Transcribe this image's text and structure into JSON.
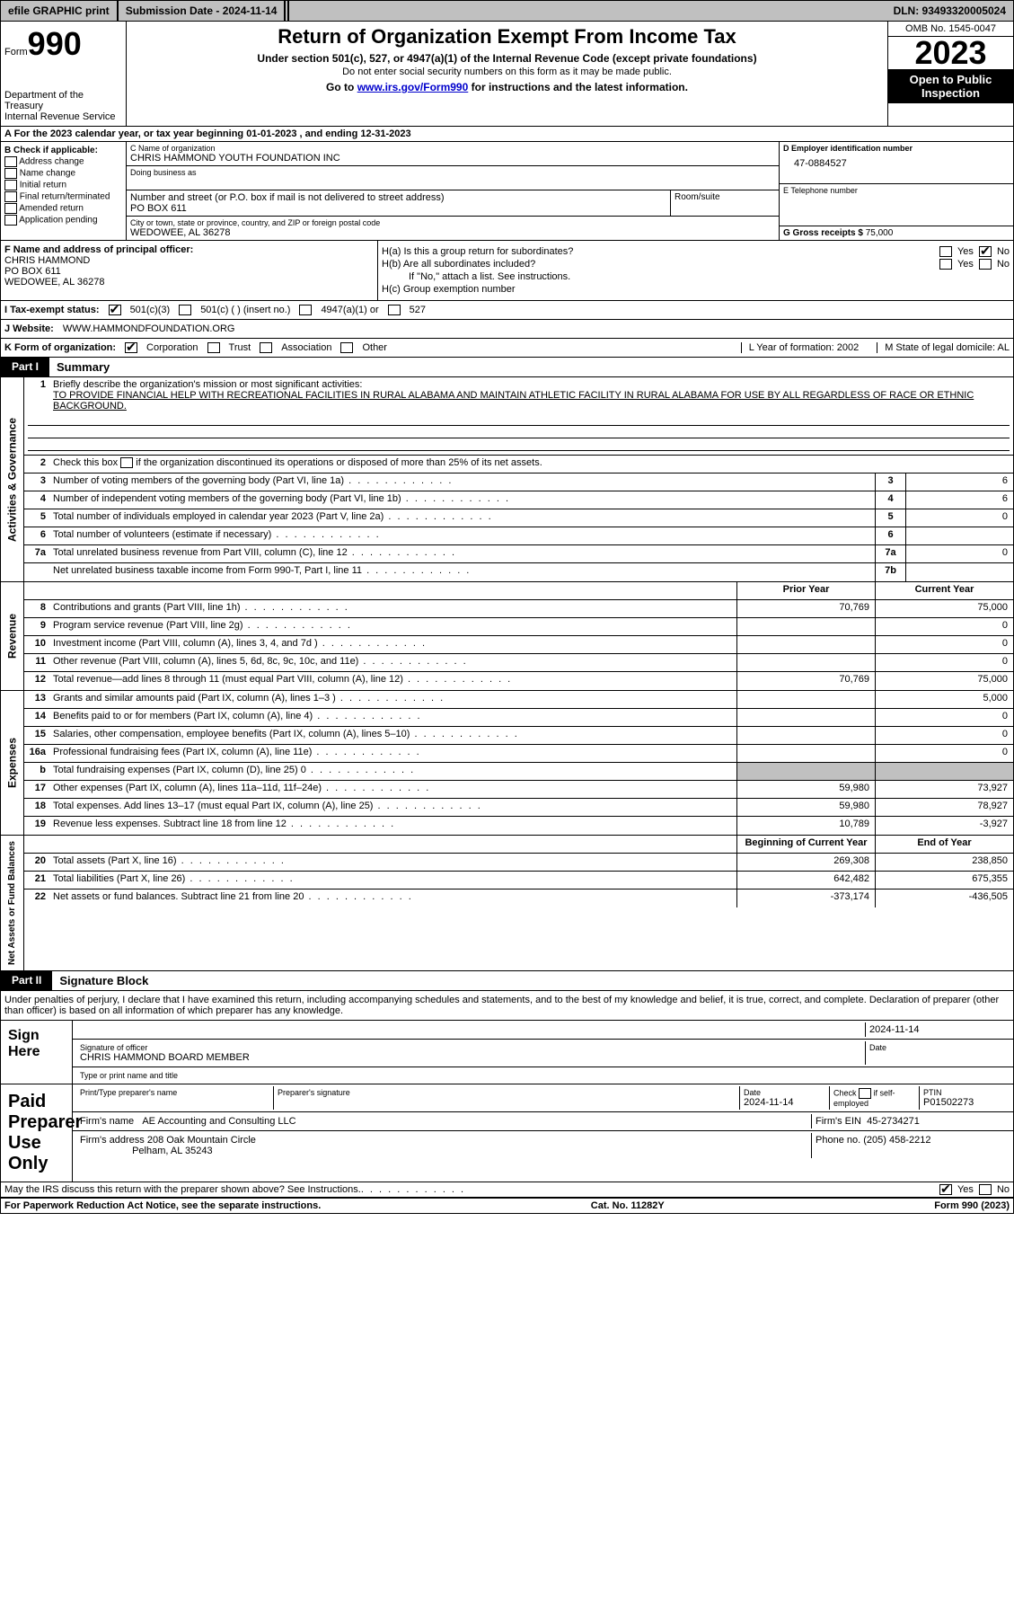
{
  "topbar": {
    "efile": "efile GRAPHIC print",
    "submission": "Submission Date - 2024-11-14",
    "dln": "DLN: 93493320005024"
  },
  "header": {
    "form_word": "Form",
    "form_num": "990",
    "dept": "Department of the Treasury",
    "irs": "Internal Revenue Service",
    "title": "Return of Organization Exempt From Income Tax",
    "sub1": "Under section 501(c), 527, or 4947(a)(1) of the Internal Revenue Code (except private foundations)",
    "sub2": "Do not enter social security numbers on this form as it may be made public.",
    "sub3_pre": "Go to ",
    "sub3_link": "www.irs.gov/Form990",
    "sub3_post": " for instructions and the latest information.",
    "omb": "OMB No. 1545-0047",
    "year": "2023",
    "open": "Open to Public Inspection"
  },
  "row_a": "A For the 2023 calendar year, or tax year beginning 01-01-2023   , and ending 12-31-2023",
  "box_b": {
    "title": "B Check if applicable:",
    "opts": [
      "Address change",
      "Name change",
      "Initial return",
      "Final return/terminated",
      "Amended return",
      "Application pending"
    ]
  },
  "box_c": {
    "name_lbl": "C Name of organization",
    "name": "CHRIS HAMMOND YOUTH FOUNDATION INC",
    "dba_lbl": "Doing business as",
    "addr_lbl": "Number and street (or P.O. box if mail is not delivered to street address)",
    "room_lbl": "Room/suite",
    "addr": "PO BOX 611",
    "city_lbl": "City or town, state or province, country, and ZIP or foreign postal code",
    "city": "WEDOWEE, AL  36278"
  },
  "box_d": {
    "lbl": "D Employer identification number",
    "val": "47-0884527"
  },
  "box_e": {
    "lbl": "E Telephone number",
    "val": ""
  },
  "box_g": {
    "lbl": "G Gross receipts $",
    "val": "75,000"
  },
  "box_f": {
    "lbl": "F  Name and address of principal officer:",
    "name": "CHRIS HAMMOND",
    "addr1": "PO BOX 611",
    "addr2": "WEDOWEE, AL  36278"
  },
  "box_h": {
    "ha": "H(a)  Is this a group return for subordinates?",
    "hb": "H(b)  Are all subordinates included?",
    "hb_note": "If \"No,\" attach a list. See instructions.",
    "hc": "H(c)  Group exemption number",
    "yes": "Yes",
    "no": "No"
  },
  "row_i": {
    "lbl": "I   Tax-exempt status:",
    "o1": "501(c)(3)",
    "o2": "501(c) (  ) (insert no.)",
    "o3": "4947(a)(1) or",
    "o4": "527"
  },
  "row_j": {
    "lbl": "J   Website:",
    "val": "WWW.HAMMONDFOUNDATION.ORG"
  },
  "row_k": {
    "lbl": "K Form of organization:",
    "o1": "Corporation",
    "o2": "Trust",
    "o3": "Association",
    "o4": "Other",
    "l": "L Year of formation: 2002",
    "m": "M State of legal domicile: AL"
  },
  "parts": {
    "p1": "Part I",
    "p1t": "Summary",
    "p2": "Part II",
    "p2t": "Signature Block"
  },
  "vtabs": {
    "ag": "Activities & Governance",
    "rev": "Revenue",
    "exp": "Expenses",
    "na": "Net Assets or Fund Balances"
  },
  "summary": {
    "l1_lbl": "Briefly describe the organization's mission or most significant activities:",
    "l1_val": "TO PROVIDE FINANCIAL HELP WITH RECREATIONAL FACILITIES IN RURAL ALABAMA AND MAINTAIN ATHLETIC FACILITY IN RURAL ALABAMA FOR USE BY ALL REGARDLESS OF RACE OR ETHNIC BACKGROUND.",
    "l2": "Check this box       if the organization discontinued its operations or disposed of more than 25% of its net assets.",
    "rows_ag": [
      {
        "n": "3",
        "t": "Number of voting members of the governing body (Part VI, line 1a)",
        "bn": "3",
        "bv": "6"
      },
      {
        "n": "4",
        "t": "Number of independent voting members of the governing body (Part VI, line 1b)",
        "bn": "4",
        "bv": "6"
      },
      {
        "n": "5",
        "t": "Total number of individuals employed in calendar year 2023 (Part V, line 2a)",
        "bn": "5",
        "bv": "0"
      },
      {
        "n": "6",
        "t": "Total number of volunteers (estimate if necessary)",
        "bn": "6",
        "bv": ""
      },
      {
        "n": "7a",
        "t": "Total unrelated business revenue from Part VIII, column (C), line 12",
        "bn": "7a",
        "bv": "0"
      },
      {
        "n": "",
        "t": "Net unrelated business taxable income from Form 990-T, Part I, line 11",
        "bn": "7b",
        "bv": ""
      }
    ],
    "col_prior": "Prior Year",
    "col_curr": "Current Year",
    "col_begin": "Beginning of Current Year",
    "col_end": "End of Year",
    "rows_rev": [
      {
        "n": "8",
        "t": "Contributions and grants (Part VIII, line 1h)",
        "p": "70,769",
        "c": "75,000"
      },
      {
        "n": "9",
        "t": "Program service revenue (Part VIII, line 2g)",
        "p": "",
        "c": "0"
      },
      {
        "n": "10",
        "t": "Investment income (Part VIII, column (A), lines 3, 4, and 7d )",
        "p": "",
        "c": "0"
      },
      {
        "n": "11",
        "t": "Other revenue (Part VIII, column (A), lines 5, 6d, 8c, 9c, 10c, and 11e)",
        "p": "",
        "c": "0"
      },
      {
        "n": "12",
        "t": "Total revenue—add lines 8 through 11 (must equal Part VIII, column (A), line 12)",
        "p": "70,769",
        "c": "75,000"
      }
    ],
    "rows_exp": [
      {
        "n": "13",
        "t": "Grants and similar amounts paid (Part IX, column (A), lines 1–3 )",
        "p": "",
        "c": "5,000"
      },
      {
        "n": "14",
        "t": "Benefits paid to or for members (Part IX, column (A), line 4)",
        "p": "",
        "c": "0"
      },
      {
        "n": "15",
        "t": "Salaries, other compensation, employee benefits (Part IX, column (A), lines 5–10)",
        "p": "",
        "c": "0"
      },
      {
        "n": "16a",
        "t": "Professional fundraising fees (Part IX, column (A), line 11e)",
        "p": "",
        "c": "0"
      },
      {
        "n": "b",
        "t": "Total fundraising expenses (Part IX, column (D), line 25) 0",
        "p": "GRAY",
        "c": "GRAY"
      },
      {
        "n": "17",
        "t": "Other expenses (Part IX, column (A), lines 11a–11d, 11f–24e)",
        "p": "59,980",
        "c": "73,927"
      },
      {
        "n": "18",
        "t": "Total expenses. Add lines 13–17 (must equal Part IX, column (A), line 25)",
        "p": "59,980",
        "c": "78,927"
      },
      {
        "n": "19",
        "t": "Revenue less expenses. Subtract line 18 from line 12",
        "p": "10,789",
        "c": "-3,927"
      }
    ],
    "rows_na": [
      {
        "n": "20",
        "t": "Total assets (Part X, line 16)",
        "p": "269,308",
        "c": "238,850"
      },
      {
        "n": "21",
        "t": "Total liabilities (Part X, line 26)",
        "p": "642,482",
        "c": "675,355"
      },
      {
        "n": "22",
        "t": "Net assets or fund balances. Subtract line 21 from line 20",
        "p": "-373,174",
        "c": "-436,505"
      }
    ]
  },
  "sig": {
    "decl": "Under penalties of perjury, I declare that I have examined this return, including accompanying schedules and statements, and to the best of my knowledge and belief, it is true, correct, and complete. Declaration of preparer (other than officer) is based on all information of which preparer has any knowledge.",
    "sign_here": "Sign Here",
    "sig_officer_lbl": "Signature of officer",
    "date_lbl": "Date",
    "sig_date": "2024-11-14",
    "officer_name": "CHRIS HAMMOND  BOARD MEMBER",
    "type_lbl": "Type or print name and title",
    "paid": "Paid Preparer Use Only",
    "prep_name_lbl": "Print/Type preparer's name",
    "prep_sig_lbl": "Preparer's signature",
    "prep_date_lbl": "Date",
    "prep_date": "2024-11-14",
    "check_self": "Check        if self-employed",
    "ptin_lbl": "PTIN",
    "ptin": "P01502273",
    "firm_name_lbl": "Firm's name",
    "firm_name": "AE Accounting and Consulting LLC",
    "firm_ein_lbl": "Firm's EIN",
    "firm_ein": "45-2734271",
    "firm_addr_lbl": "Firm's address",
    "firm_addr1": "208 Oak Mountain Circle",
    "firm_addr2": "Pelham, AL  35243",
    "phone_lbl": "Phone no.",
    "phone": "(205) 458-2212",
    "may": "May the IRS discuss this return with the preparer shown above? See Instructions.",
    "yes": "Yes",
    "no": "No"
  },
  "footer": {
    "pra": "For Paperwork Reduction Act Notice, see the separate instructions.",
    "cat": "Cat. No. 11282Y",
    "form": "Form 990 (2023)"
  }
}
